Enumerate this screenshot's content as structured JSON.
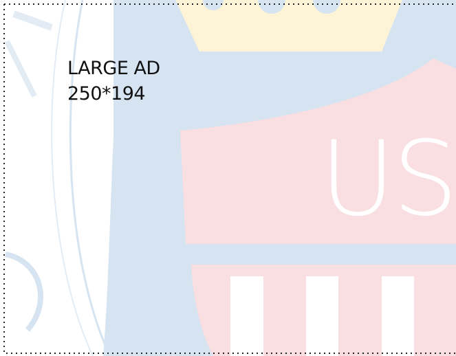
{
  "ad": {
    "label": "LARGE AD",
    "size": "250*194"
  },
  "emblem": {
    "text": "US"
  }
}
